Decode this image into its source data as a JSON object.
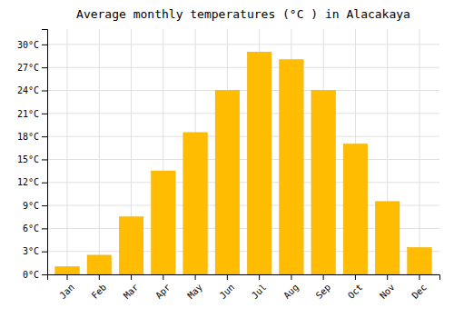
{
  "chart_data": {
    "type": "bar",
    "title": "Average monthly temperatures (°C ) in Alacakaya",
    "categories": [
      "Jan",
      "Feb",
      "Mar",
      "Apr",
      "May",
      "Jun",
      "Jul",
      "Aug",
      "Sep",
      "Oct",
      "Nov",
      "Dec"
    ],
    "values": [
      1,
      2.5,
      7.5,
      13.5,
      18.5,
      24,
      29,
      28,
      24,
      17,
      9.5,
      3.5
    ],
    "color": "#FFBC00",
    "ylim": [
      0,
      32
    ],
    "yticks": [
      {
        "value": 0,
        "label": "0°C"
      },
      {
        "value": 3,
        "label": "3°C"
      },
      {
        "value": 6,
        "label": "6°C"
      },
      {
        "value": 9,
        "label": "9°C"
      },
      {
        "value": 12,
        "label": "12°C"
      },
      {
        "value": 15,
        "label": "15°C"
      },
      {
        "value": 18,
        "label": "18°C"
      },
      {
        "value": 21,
        "label": "21°C"
      },
      {
        "value": 24,
        "label": "24°C"
      },
      {
        "value": 27,
        "label": "27°C"
      },
      {
        "value": 30,
        "label": "30°C"
      }
    ],
    "grid": true
  }
}
